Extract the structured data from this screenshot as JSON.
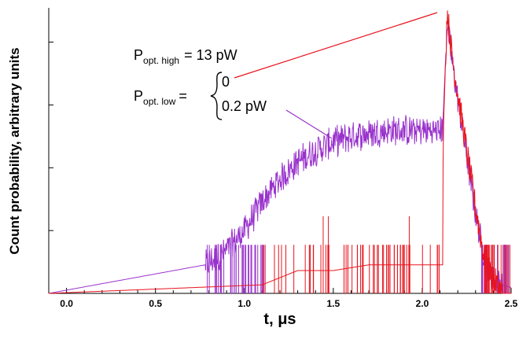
{
  "chart_data": {
    "type": "line",
    "title": "",
    "xlabel": "t, μs",
    "ylabel": "Count probability, arbitrary units",
    "xlim": [
      -0.1,
      2.5
    ],
    "ylim": [
      0,
      1
    ],
    "y_scale": "log",
    "x_ticks": [
      "0.0",
      "0.5",
      "1.0",
      "1.5",
      "2.0",
      "2.5"
    ],
    "grid": false,
    "annotations": {
      "p_high_main": "P",
      "p_high_sub": "opt. high",
      "p_high_value": "= 13 pW",
      "p_low_main": "P",
      "p_low_sub": "opt. low",
      "p_low_eq": "=",
      "low_value_zero": "0",
      "low_value_02": "0.2 pW"
    },
    "series": [
      {
        "name": "0",
        "color": "#e8141e",
        "x": [
          -0.1,
          1.1,
          1.3,
          1.5,
          1.7,
          1.9,
          2.0,
          2.115,
          2.118,
          2.14,
          2.17,
          2.2,
          2.25,
          2.3,
          2.35,
          2.4,
          2.45,
          2.5
        ],
        "y": [
          0,
          0.03,
          0.08,
          0.08,
          0.1,
          0.1,
          0.1,
          0.1,
          0.55,
          0.99,
          0.82,
          0.7,
          0.5,
          0.3,
          0.12,
          0.05,
          0.0,
          0.0
        ]
      },
      {
        "name": "0.2 pW",
        "color": "#9932cc",
        "x": [
          -0.1,
          0.78,
          0.9,
          1.0,
          1.1,
          1.2,
          1.3,
          1.4,
          1.5,
          1.6,
          1.7,
          1.8,
          1.9,
          2.0,
          2.1,
          2.115,
          2.14,
          2.17,
          2.2,
          2.25,
          2.3,
          2.35,
          2.4,
          2.45,
          2.5
        ],
        "y": [
          0,
          0.1,
          0.15,
          0.22,
          0.32,
          0.4,
          0.46,
          0.5,
          0.53,
          0.55,
          0.56,
          0.57,
          0.57,
          0.57,
          0.57,
          0.58,
          0.95,
          0.8,
          0.68,
          0.48,
          0.28,
          0.12,
          0.05,
          0.03,
          0.02
        ]
      }
    ]
  }
}
